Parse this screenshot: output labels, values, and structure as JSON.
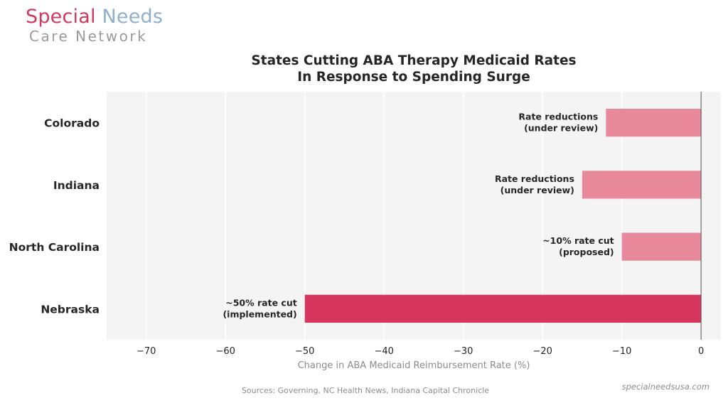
{
  "brand": {
    "name_part1": "Special",
    "name_part2": "Needs",
    "name_line2": "Care Network",
    "color_part1": "#d0395e",
    "color_part2": "#8fb0cc",
    "website": "specialneedsusa.com"
  },
  "source_note": "Sources: Governing, NC Health News, Indiana Capital Chronicle",
  "chart_data": {
    "type": "bar",
    "orientation": "horizontal",
    "title_line1": "States Cutting ABA Therapy Medicaid Rates",
    "title_line2": "In Response to Spending Surge",
    "xlabel": "Change in ABA Medicaid Reimbursement Rate (%)",
    "ylabel": "",
    "xlim": [
      -75,
      2.5
    ],
    "xticks": [
      -70,
      -60,
      -50,
      -40,
      -30,
      -20,
      -10,
      0
    ],
    "xtick_labels": [
      "−70",
      "−60",
      "−50",
      "−40",
      "−30",
      "−20",
      "−10",
      "0"
    ],
    "grid": "vertical",
    "categories": [
      "Colorado",
      "Indiana",
      "North Carolina",
      "Nebraska"
    ],
    "values": [
      -12,
      -15,
      -10,
      -50
    ],
    "bar_colors": [
      "#e8899b",
      "#e8899b",
      "#e8899b",
      "#d6365d"
    ],
    "annotations": [
      [
        "Rate reductions",
        "(under review)"
      ],
      [
        "Rate reductions",
        "(under review)"
      ],
      [
        "~10% rate cut",
        "(proposed)"
      ],
      [
        "~50% rate cut",
        "(implemented)"
      ]
    ],
    "plot_background": "#f4f4f4"
  }
}
